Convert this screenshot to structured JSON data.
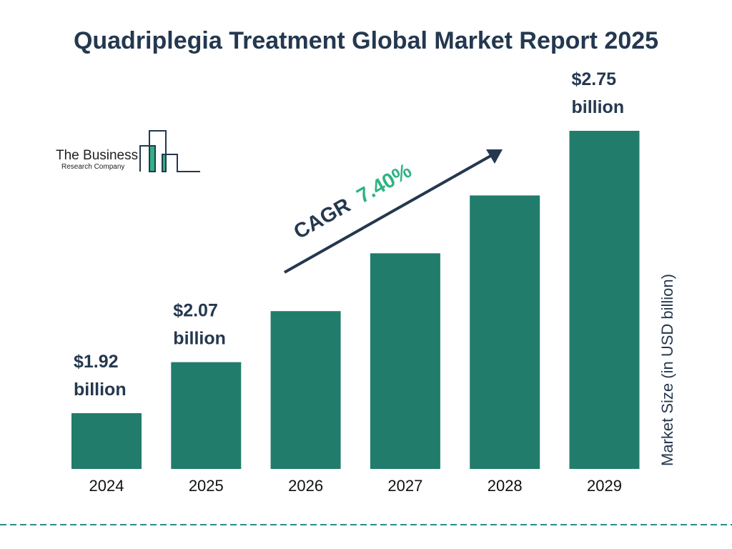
{
  "chart_data": {
    "type": "bar",
    "title": "Quadriplegia Treatment Global Market Report 2025",
    "ylabel": "Market Size (in USD billion)",
    "xlabel": "",
    "categories": [
      "2024",
      "2025",
      "2026",
      "2027",
      "2028",
      "2029"
    ],
    "values": [
      1.92,
      2.07,
      2.22,
      2.39,
      2.56,
      2.75
    ],
    "data_labels": [
      [
        "$1.92",
        "billion"
      ],
      [
        "$2.07",
        "billion"
      ],
      null,
      null,
      null,
      [
        "$2.75",
        "billion"
      ]
    ],
    "ylim": [
      1.75,
      2.75
    ],
    "grid": false,
    "annotation": {
      "prefix": "CAGR",
      "value": "7.40%"
    },
    "colors": {
      "bar": "#217c6c",
      "text": "#24384f",
      "cagr": "#2fb383",
      "dash": "#2a8c8c"
    }
  },
  "logo": {
    "line1": "The Business",
    "line2": "Research Company"
  }
}
